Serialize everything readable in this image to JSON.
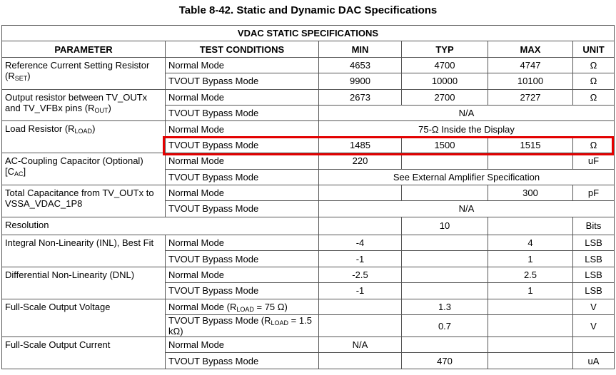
{
  "title": "Table 8-42. Static and Dynamic DAC Specifications",
  "section": "VDAC STATIC SPECIFICATIONS",
  "columns": [
    "PARAMETER",
    "TEST CONDITIONS",
    "MIN",
    "TYP",
    "MAX",
    "UNIT"
  ],
  "rows": [
    {
      "parameter": [
        "Reference Current Setting Resistor (R",
        "SET",
        ")"
      ],
      "conditions": [
        {
          "test": [
            "Normal Mode"
          ],
          "min": "4653",
          "typ": "4700",
          "max": "4747",
          "unit": "Ω"
        },
        {
          "test": [
            "TVOUT Bypass Mode"
          ],
          "min": "9900",
          "typ": "10000",
          "max": "10100",
          "unit": "Ω"
        }
      ]
    },
    {
      "parameter": [
        "Output resistor between TV_OUTx and TV_VFBx pins (R",
        "OUT",
        ")"
      ],
      "conditions": [
        {
          "test": [
            "Normal Mode"
          ],
          "min": "2673",
          "typ": "2700",
          "max": "2727",
          "unit": "Ω"
        },
        {
          "test": [
            "TVOUT Bypass Mode"
          ],
          "all": "N/A"
        }
      ]
    },
    {
      "parameter": [
        "Load Resistor (R",
        "LOAD",
        ")"
      ],
      "conditions": [
        {
          "test": [
            "Normal Mode"
          ],
          "all": "75-Ω Inside the Display"
        },
        {
          "test": [
            "TVOUT Bypass Mode"
          ],
          "min": "1485",
          "typ": "1500",
          "max": "1515",
          "unit": "Ω"
        }
      ]
    },
    {
      "parameter": [
        "AC-Coupling Capacitor (Optional) [C",
        "AC",
        "]"
      ],
      "conditions": [
        {
          "test": [
            "Normal Mode"
          ],
          "min": "220",
          "unit": "uF"
        },
        {
          "test": [
            "TVOUT Bypass Mode"
          ],
          "all": "See External Amplifier Specification"
        }
      ]
    },
    {
      "parameter": [
        "Total Capacitance from TV_OUTx to VSSA_VDAC_1P8"
      ],
      "conditions": [
        {
          "test": [
            "Normal Mode"
          ],
          "max": "300",
          "unit": "pF"
        },
        {
          "test": [
            "TVOUT Bypass Mode"
          ],
          "all": "N/A"
        }
      ]
    },
    {
      "parameter": [
        "Resolution"
      ],
      "conditions": [
        {
          "typ": "10",
          "unit": "Bits"
        }
      ]
    },
    {
      "parameter": [
        "Integral Non-Linearity (INL), Best Fit"
      ],
      "conditions": [
        {
          "test": [
            "Normal Mode"
          ],
          "min": "-4",
          "max": "4",
          "unit": "LSB"
        },
        {
          "test": [
            "TVOUT Bypass Mode"
          ],
          "min": "-1",
          "max": "1",
          "unit": "LSB"
        }
      ]
    },
    {
      "parameter": [
        "Differential Non-Linearity (DNL)"
      ],
      "conditions": [
        {
          "test": [
            "Normal Mode"
          ],
          "min": "-2.5",
          "max": "2.5",
          "unit": "LSB"
        },
        {
          "test": [
            "TVOUT Bypass Mode"
          ],
          "min": "-1",
          "max": "1",
          "unit": "LSB"
        }
      ]
    },
    {
      "parameter": [
        "Full-Scale Output Voltage"
      ],
      "conditions": [
        {
          "test": [
            "Normal Mode (R",
            "LOAD",
            " = 75 Ω)"
          ],
          "typ": "1.3",
          "unit": "V"
        },
        {
          "test": [
            "TVOUT Bypass Mode (R",
            "LOAD",
            " = 1.5 kΩ)"
          ],
          "typ": "0.7",
          "unit": "V"
        }
      ]
    },
    {
      "parameter": [
        "Full-Scale Output Current"
      ],
      "conditions": [
        {
          "test": [
            "Normal Mode"
          ],
          "min": "N/A"
        },
        {
          "test": [
            "TVOUT Bypass Mode"
          ],
          "typ": "470",
          "unit": "uA"
        }
      ]
    }
  ]
}
